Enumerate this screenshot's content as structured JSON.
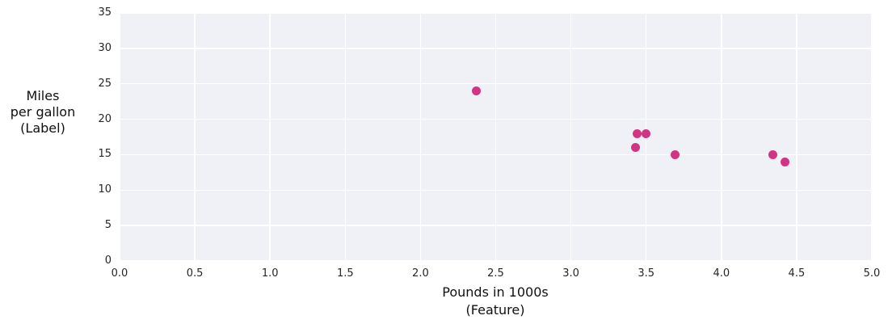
{
  "chart_data": {
    "type": "scatter",
    "title": "",
    "xlabel_lines": [
      "Pounds in 1000s",
      "(Feature)"
    ],
    "ylabel_lines": [
      "Miles",
      "per gallon",
      "(Label)"
    ],
    "points": [
      {
        "x": 3.5,
        "y": 18
      },
      {
        "x": 3.69,
        "y": 15
      },
      {
        "x": 3.44,
        "y": 18
      },
      {
        "x": 3.43,
        "y": 16
      },
      {
        "x": 4.34,
        "y": 15
      },
      {
        "x": 4.42,
        "y": 14
      },
      {
        "x": 2.37,
        "y": 24
      }
    ],
    "xlim": [
      0.0,
      5.0
    ],
    "ylim": [
      0,
      35
    ],
    "xticks": [
      0.0,
      0.5,
      1.0,
      1.5,
      2.0,
      2.5,
      3.0,
      3.5,
      4.0,
      4.5,
      5.0
    ],
    "xtick_labels": [
      "0.0",
      "0.5",
      "1.0",
      "1.5",
      "2.0",
      "2.5",
      "3.0",
      "3.5",
      "4.0",
      "4.5",
      "5.0"
    ],
    "yticks": [
      0,
      5,
      10,
      15,
      20,
      25,
      30,
      35
    ],
    "ytick_labels": [
      "0",
      "5",
      "10",
      "15",
      "20",
      "25",
      "30",
      "35"
    ],
    "grid": true,
    "legend": false,
    "colors": {
      "point": "#d23382",
      "plot_background": "#eff1f6",
      "gridline": "#ffffff",
      "tick_text": "#262626",
      "label_text": "#111111"
    }
  }
}
